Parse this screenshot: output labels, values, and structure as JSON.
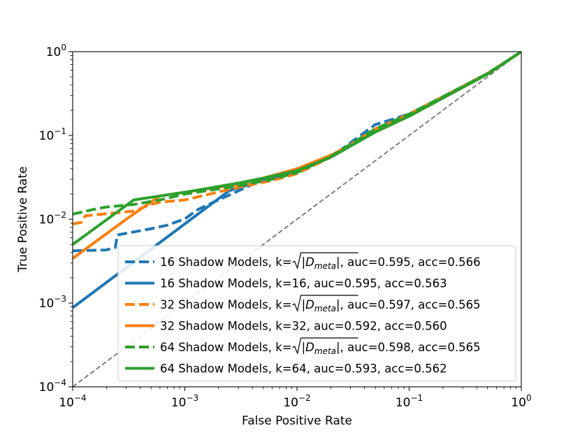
{
  "chart_data": {
    "type": "line",
    "title": "",
    "xlabel": "False Positive Rate",
    "ylabel": "True Positive Rate",
    "xscale": "log",
    "yscale": "log",
    "xlim": [
      0.0001,
      1
    ],
    "ylim": [
      0.0001,
      1
    ],
    "x_ticks": [
      {
        "value": 0.0001,
        "base": "10",
        "exp": "−4"
      },
      {
        "value": 0.001,
        "base": "10",
        "exp": "−3"
      },
      {
        "value": 0.01,
        "base": "10",
        "exp": "−2"
      },
      {
        "value": 0.1,
        "base": "10",
        "exp": "−1"
      },
      {
        "value": 1,
        "base": "10",
        "exp": "0"
      }
    ],
    "y_ticks": [
      {
        "value": 0.0001,
        "base": "10",
        "exp": "−4"
      },
      {
        "value": 0.001,
        "base": "10",
        "exp": "−3"
      },
      {
        "value": 0.01,
        "base": "10",
        "exp": "−2"
      },
      {
        "value": 0.1,
        "base": "10",
        "exp": "−1"
      },
      {
        "value": 1,
        "base": "10",
        "exp": "0"
      }
    ],
    "diagonal": {
      "color": "#808080",
      "style": "dashed"
    },
    "legend_position": "lower-right",
    "series": [
      {
        "name": "16 Shadow Models, k=√|D_meta|, auc=0.595, acc=0.566",
        "prefix": "16 Shadow Models, k=",
        "sqrt_of": "D",
        "sub": "meta",
        "suffix": ", auc=0.595, acc=0.566",
        "color": "#1f77b4",
        "style": "dashed",
        "x": [
          0.0001,
          0.0002,
          0.00024,
          0.00025,
          0.0005,
          0.0007,
          0.001,
          0.0013,
          0.0018,
          0.0025,
          0.004,
          0.006,
          0.01,
          0.02,
          0.05,
          0.1,
          0.2,
          0.5,
          1
        ],
        "y": [
          0.0042,
          0.0043,
          0.0046,
          0.0065,
          0.0077,
          0.0085,
          0.0101,
          0.013,
          0.016,
          0.0195,
          0.026,
          0.031,
          0.036,
          0.055,
          0.135,
          0.18,
          0.29,
          0.55,
          1
        ]
      },
      {
        "name": "16 Shadow Models, k=16, auc=0.595, acc=0.563",
        "prefix": "16 Shadow Models, k=16, auc=0.595, acc=0.563",
        "color": "#1f77b4",
        "style": "solid",
        "x": [
          0.0001,
          0.00025,
          0.001,
          0.0025,
          0.005,
          0.01,
          0.02,
          0.05,
          0.1,
          0.2,
          0.5,
          1
        ],
        "y": [
          0.00088,
          0.0022,
          0.0088,
          0.022,
          0.029,
          0.037,
          0.055,
          0.11,
          0.17,
          0.28,
          0.54,
          1
        ]
      },
      {
        "name": "32 Shadow Models, k=√|D_meta|, auc=0.597, acc=0.565",
        "prefix": "32 Shadow Models, k=",
        "sqrt_of": "D",
        "sub": "meta",
        "suffix": ", auc=0.597, acc=0.565",
        "color": "#ff7f0e",
        "style": "dashed",
        "x": [
          0.0001,
          0.00012,
          0.00013,
          0.00035,
          0.0005,
          0.0006,
          0.001,
          0.003,
          0.006,
          0.01,
          0.02,
          0.05,
          0.1,
          0.2,
          0.5,
          1
        ],
        "y": [
          0.0088,
          0.0092,
          0.011,
          0.0125,
          0.015,
          0.016,
          0.017,
          0.024,
          0.029,
          0.035,
          0.055,
          0.12,
          0.18,
          0.29,
          0.55,
          1
        ]
      },
      {
        "name": "32 Shadow Models, k=32, auc=0.592, acc=0.560",
        "prefix": "32 Shadow Models, k=32, auc=0.592, acc=0.560",
        "color": "#ff7f0e",
        "style": "solid",
        "x": [
          0.0001,
          0.0003,
          0.0006,
          0.001,
          0.003,
          0.005,
          0.01,
          0.02,
          0.05,
          0.1,
          0.2,
          0.5,
          1
        ],
        "y": [
          0.0034,
          0.01,
          0.019,
          0.021,
          0.026,
          0.031,
          0.04,
          0.058,
          0.11,
          0.17,
          0.28,
          0.54,
          1
        ]
      },
      {
        "name": "64 Shadow Models, k=√|D_meta|, auc=0.598, acc=0.565",
        "prefix": "64 Shadow Models, k=",
        "sqrt_of": "D",
        "sub": "meta",
        "suffix": ", auc=0.598, acc=0.565",
        "color": "#2ca02c",
        "style": "dashed",
        "x": [
          0.0001,
          0.00015,
          0.0002,
          0.00035,
          0.0006,
          0.001,
          0.003,
          0.006,
          0.01,
          0.02,
          0.05,
          0.1,
          0.2,
          0.5,
          1
        ],
        "y": [
          0.0115,
          0.013,
          0.014,
          0.015,
          0.017,
          0.02,
          0.025,
          0.03,
          0.036,
          0.056,
          0.12,
          0.18,
          0.29,
          0.55,
          1
        ]
      },
      {
        "name": "64 Shadow Models, k=64, auc=0.593, acc=0.562",
        "prefix": "64 Shadow Models, k=64, auc=0.593, acc=0.562",
        "color": "#2ca02c",
        "style": "solid",
        "x": [
          0.0001,
          0.00035,
          0.001,
          0.003,
          0.005,
          0.01,
          0.02,
          0.05,
          0.1,
          0.2,
          0.5,
          1
        ],
        "y": [
          0.005,
          0.017,
          0.021,
          0.027,
          0.031,
          0.038,
          0.055,
          0.11,
          0.17,
          0.28,
          0.54,
          1
        ]
      }
    ]
  }
}
